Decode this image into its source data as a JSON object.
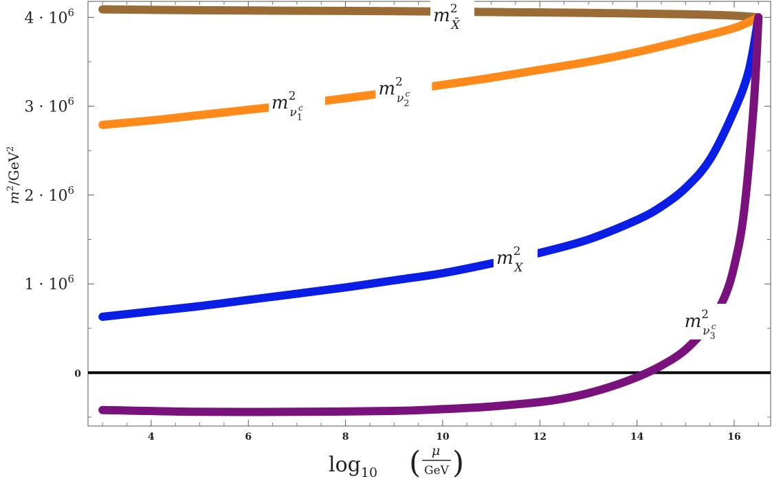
{
  "chart_data": {
    "type": "line",
    "title": "",
    "xlabel": "log10 (μ/GeV)",
    "xlabel_parts": {
      "func": "log",
      "base": "10",
      "num": "μ",
      "den": "GeV"
    },
    "ylabel": "m²/GeV²",
    "ylabel_parts": {
      "m": "m",
      "sup": "2",
      "slash": "/GeV",
      "sup2": "2"
    },
    "xlim": [
      2.7,
      16.75
    ],
    "ylim": [
      -600000,
      4180000
    ],
    "xticks": [
      4,
      6,
      8,
      10,
      12,
      14,
      16
    ],
    "yticks": [
      {
        "value": 4000000,
        "mantissa": "4 · 10",
        "exp": "6"
      },
      {
        "value": 3000000,
        "mantissa": "3 · 10",
        "exp": "6"
      },
      {
        "value": 2000000,
        "mantissa": "2 · 10",
        "exp": "6"
      },
      {
        "value": 1000000,
        "mantissa": "1 · 10",
        "exp": "6"
      },
      {
        "value": 0,
        "mantissa": "0",
        "exp": ""
      }
    ],
    "zero_line": true,
    "grid": false,
    "series": [
      {
        "name": "m²_X̄",
        "label": {
          "base": "m",
          "sup": "2",
          "sub": "X̄"
        },
        "color": "#9a6b35",
        "x": [
          3,
          5,
          7,
          9,
          11,
          13,
          15,
          16,
          16.5
        ],
        "y": [
          4090000,
          4080000,
          4075000,
          4070000,
          4060000,
          4050000,
          4035000,
          4020000,
          4000000
        ]
      },
      {
        "name": "m²_ν₁ᶜ, m²_ν₂ᶜ",
        "label": {
          "base": "m",
          "sup": "2",
          "sub": "ν",
          "subsub": "1",
          "subsup": "c"
        },
        "label2": {
          "base": "m",
          "sup": "2",
          "sub": "ν",
          "subsub": "2",
          "subsup": "c"
        },
        "color": "#ff8a1a",
        "x": [
          3,
          4,
          5,
          6,
          7,
          8,
          9,
          10,
          11,
          12,
          13,
          14,
          15,
          16,
          16.5
        ],
        "y": [
          2790000,
          2840000,
          2900000,
          2960000,
          3020000,
          3090000,
          3160000,
          3240000,
          3320000,
          3410000,
          3500000,
          3610000,
          3740000,
          3880000,
          4000000
        ]
      },
      {
        "name": "m²_X",
        "label": {
          "base": "m",
          "sup": "2",
          "sub": "X"
        },
        "color": "#0a1ee6",
        "x": [
          3,
          4,
          5,
          6,
          7,
          8,
          9,
          10,
          11,
          12,
          13,
          14,
          14.5,
          15,
          15.5,
          16,
          16.3,
          16.5
        ],
        "y": [
          630000,
          690000,
          750000,
          820000,
          890000,
          960000,
          1040000,
          1120000,
          1230000,
          1350000,
          1500000,
          1720000,
          1870000,
          2080000,
          2400000,
          2950000,
          3400000,
          4000000
        ]
      },
      {
        "name": "m²_ν₃ᶜ",
        "label": {
          "base": "m",
          "sup": "2",
          "sub": "ν",
          "subsub": "3",
          "subsup": "c"
        },
        "color": "#7a127e",
        "x": [
          3,
          5,
          7,
          9,
          10,
          11,
          12,
          12.5,
          13,
          13.5,
          14,
          14.5,
          15,
          15.5,
          15.8,
          16,
          16.2,
          16.4,
          16.5
        ],
        "y": [
          -420000,
          -440000,
          -440000,
          -430000,
          -410000,
          -380000,
          -330000,
          -290000,
          -230000,
          -150000,
          -50000,
          80000,
          260000,
          560000,
          850000,
          1200000,
          1800000,
          3000000,
          4000000
        ]
      }
    ]
  }
}
